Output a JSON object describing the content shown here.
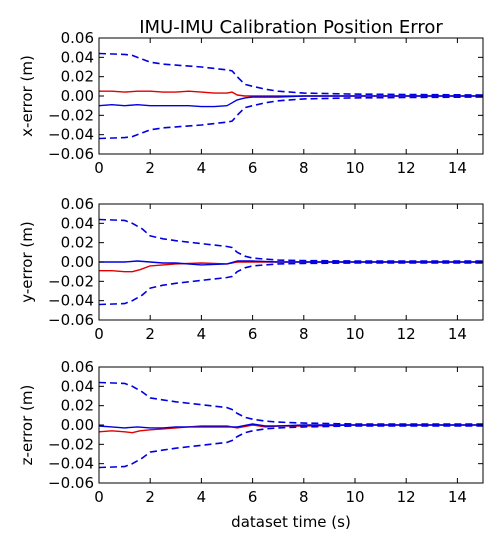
{
  "title": "IMU-IMU Calibration Position Error",
  "xlabel": "dataset time (s)",
  "colors": {
    "error": "#e00000",
    "bound": "#0000e0",
    "frame": "#000000"
  },
  "chart_data": [
    {
      "type": "line",
      "ylabel": "x-error (m)",
      "xlim": [
        0,
        15
      ],
      "ylim": [
        -0.06,
        0.06
      ],
      "xticks": [
        "0",
        "2",
        "4",
        "6",
        "8",
        "10",
        "12",
        "14"
      ],
      "yticks": [
        "0.06",
        "0.04",
        "0.02",
        "0.00",
        "−0.02",
        "−0.04",
        "−0.06"
      ],
      "grid": false,
      "series": [
        {
          "role": "error",
          "color": "red",
          "style": "solid",
          "x": [
            0,
            0.5,
            1,
            1.5,
            2,
            2.5,
            3,
            3.5,
            4,
            4.5,
            5,
            5.2,
            5.4,
            5.7,
            6,
            7,
            8,
            9,
            10,
            12,
            15
          ],
          "y": [
            0.005,
            0.005,
            0.004,
            0.005,
            0.005,
            0.004,
            0.004,
            0.005,
            0.004,
            0.003,
            0.003,
            0.004,
            0.001,
            0.0,
            0.0,
            0.0,
            0.0,
            0.0,
            0.0,
            0.0,
            0.0
          ]
        },
        {
          "role": "error",
          "color": "blue",
          "style": "solid",
          "x": [
            0,
            0.5,
            1,
            1.5,
            2,
            2.5,
            3,
            3.5,
            4,
            4.5,
            5,
            5.2,
            5.4,
            5.7,
            6,
            7,
            8,
            9,
            10,
            12,
            15
          ],
          "y": [
            -0.01,
            -0.009,
            -0.01,
            -0.009,
            -0.01,
            -0.01,
            -0.01,
            -0.01,
            -0.011,
            -0.011,
            -0.01,
            -0.007,
            -0.004,
            -0.002,
            -0.001,
            -0.001,
            0.0,
            0.0,
            0.0,
            0.0,
            0.0
          ]
        },
        {
          "role": "bound",
          "color": "blue",
          "style": "dashed",
          "x": [
            0,
            1,
            1.3,
            1.7,
            2,
            2.5,
            3,
            4,
            5,
            5.2,
            5.4,
            5.7,
            6,
            6.5,
            7,
            8,
            10,
            12,
            15
          ],
          "y": [
            0.044,
            0.043,
            0.042,
            0.038,
            0.035,
            0.033,
            0.032,
            0.03,
            0.027,
            0.026,
            0.02,
            0.012,
            0.01,
            0.007,
            0.005,
            0.003,
            0.002,
            0.0015,
            0.001
          ]
        },
        {
          "role": "bound",
          "color": "blue",
          "style": "dashed",
          "x": [
            0,
            1,
            1.3,
            1.7,
            2,
            2.5,
            3,
            4,
            5,
            5.2,
            5.4,
            5.7,
            6,
            6.5,
            7,
            8,
            10,
            12,
            15
          ],
          "y": [
            -0.044,
            -0.043,
            -0.042,
            -0.038,
            -0.035,
            -0.033,
            -0.032,
            -0.03,
            -0.027,
            -0.026,
            -0.02,
            -0.012,
            -0.01,
            -0.007,
            -0.005,
            -0.003,
            -0.002,
            -0.0015,
            -0.001
          ]
        }
      ]
    },
    {
      "type": "line",
      "ylabel": "y-error (m)",
      "xlim": [
        0,
        15
      ],
      "ylim": [
        -0.06,
        0.06
      ],
      "xticks": [
        "0",
        "2",
        "4",
        "6",
        "8",
        "10",
        "12",
        "14"
      ],
      "yticks": [
        "0.06",
        "0.04",
        "0.02",
        "0.00",
        "−0.02",
        "−0.04",
        "−0.06"
      ],
      "grid": false,
      "series": [
        {
          "role": "error",
          "color": "red",
          "style": "solid",
          "x": [
            0,
            0.5,
            1,
            1.3,
            1.6,
            2,
            2.5,
            3,
            4,
            5,
            5.4,
            6,
            7,
            8,
            10,
            15
          ],
          "y": [
            -0.009,
            -0.009,
            -0.01,
            -0.01,
            -0.008,
            -0.004,
            -0.003,
            -0.002,
            -0.001,
            -0.002,
            0.0,
            0.0,
            0.0,
            0.0,
            0.0,
            0.0
          ]
        },
        {
          "role": "error",
          "color": "blue",
          "style": "solid",
          "x": [
            0,
            0.5,
            1,
            1.5,
            2,
            2.5,
            3,
            4,
            5,
            5.4,
            6,
            7,
            8,
            10,
            15
          ],
          "y": [
            0.0,
            0.0,
            0.0,
            0.001,
            0.0,
            -0.001,
            -0.001,
            -0.003,
            -0.002,
            0.001,
            0.001,
            0.0,
            0.0,
            0.0,
            0.0
          ]
        },
        {
          "role": "bound",
          "color": "blue",
          "style": "dashed",
          "x": [
            0,
            1,
            1.3,
            1.7,
            2,
            2.5,
            3,
            4,
            5,
            5.2,
            5.4,
            5.7,
            6,
            6.5,
            7,
            8,
            10,
            12,
            15
          ],
          "y": [
            0.044,
            0.043,
            0.04,
            0.034,
            0.027,
            0.024,
            0.022,
            0.019,
            0.016,
            0.015,
            0.01,
            0.006,
            0.004,
            0.003,
            0.002,
            0.0015,
            0.001,
            0.001,
            0.001
          ]
        },
        {
          "role": "bound",
          "color": "blue",
          "style": "dashed",
          "x": [
            0,
            1,
            1.3,
            1.7,
            2,
            2.5,
            3,
            4,
            5,
            5.2,
            5.4,
            5.7,
            6,
            6.5,
            7,
            8,
            10,
            12,
            15
          ],
          "y": [
            -0.044,
            -0.043,
            -0.04,
            -0.034,
            -0.027,
            -0.024,
            -0.022,
            -0.019,
            -0.016,
            -0.015,
            -0.01,
            -0.006,
            -0.004,
            -0.003,
            -0.002,
            -0.0015,
            -0.001,
            -0.001,
            -0.001
          ]
        }
      ]
    },
    {
      "type": "line",
      "ylabel": "z-error (m)",
      "xlim": [
        0,
        15
      ],
      "ylim": [
        -0.06,
        0.06
      ],
      "xticks": [
        "0",
        "2",
        "4",
        "6",
        "8",
        "10",
        "12",
        "14"
      ],
      "yticks": [
        "0.06",
        "0.04",
        "0.02",
        "0.00",
        "−0.02",
        "−0.04",
        "−0.06"
      ],
      "grid": false,
      "series": [
        {
          "role": "error",
          "color": "red",
          "style": "solid",
          "x": [
            0,
            0.5,
            1,
            1.3,
            1.6,
            2,
            2.5,
            3,
            3.5,
            4,
            5,
            5.4,
            6,
            6.5,
            7,
            8,
            10,
            15
          ],
          "y": [
            -0.007,
            -0.006,
            -0.007,
            -0.008,
            -0.006,
            -0.005,
            -0.004,
            -0.003,
            -0.002,
            -0.001,
            -0.001,
            -0.003,
            0.0,
            -0.002,
            -0.001,
            -0.001,
            0.0,
            0.0
          ]
        },
        {
          "role": "error",
          "color": "blue",
          "style": "solid",
          "x": [
            0,
            0.5,
            1,
            1.5,
            2,
            2.5,
            3,
            4,
            5,
            5.4,
            6,
            6.5,
            7,
            8,
            10,
            15
          ],
          "y": [
            -0.001,
            -0.002,
            -0.003,
            -0.002,
            -0.003,
            -0.003,
            -0.002,
            -0.002,
            -0.002,
            -0.002,
            0.001,
            -0.001,
            -0.001,
            0.0,
            0.0,
            0.0
          ]
        },
        {
          "role": "bound",
          "color": "blue",
          "style": "dashed",
          "x": [
            0,
            1,
            1.3,
            1.7,
            2,
            2.5,
            3,
            4,
            5,
            5.2,
            5.4,
            5.7,
            6,
            6.5,
            7,
            8,
            10,
            12,
            15
          ],
          "y": [
            0.044,
            0.043,
            0.04,
            0.034,
            0.028,
            0.026,
            0.024,
            0.021,
            0.018,
            0.016,
            0.012,
            0.008,
            0.006,
            0.004,
            0.003,
            0.002,
            0.001,
            0.001,
            0.001
          ]
        },
        {
          "role": "bound",
          "color": "blue",
          "style": "dashed",
          "x": [
            0,
            1,
            1.3,
            1.7,
            2,
            2.5,
            3,
            4,
            5,
            5.2,
            5.4,
            5.7,
            6,
            6.5,
            7,
            8,
            10,
            12,
            15
          ],
          "y": [
            -0.044,
            -0.043,
            -0.04,
            -0.034,
            -0.028,
            -0.026,
            -0.024,
            -0.021,
            -0.018,
            -0.016,
            -0.012,
            -0.008,
            -0.006,
            -0.004,
            -0.003,
            -0.002,
            -0.001,
            -0.001,
            -0.001
          ]
        }
      ]
    }
  ]
}
